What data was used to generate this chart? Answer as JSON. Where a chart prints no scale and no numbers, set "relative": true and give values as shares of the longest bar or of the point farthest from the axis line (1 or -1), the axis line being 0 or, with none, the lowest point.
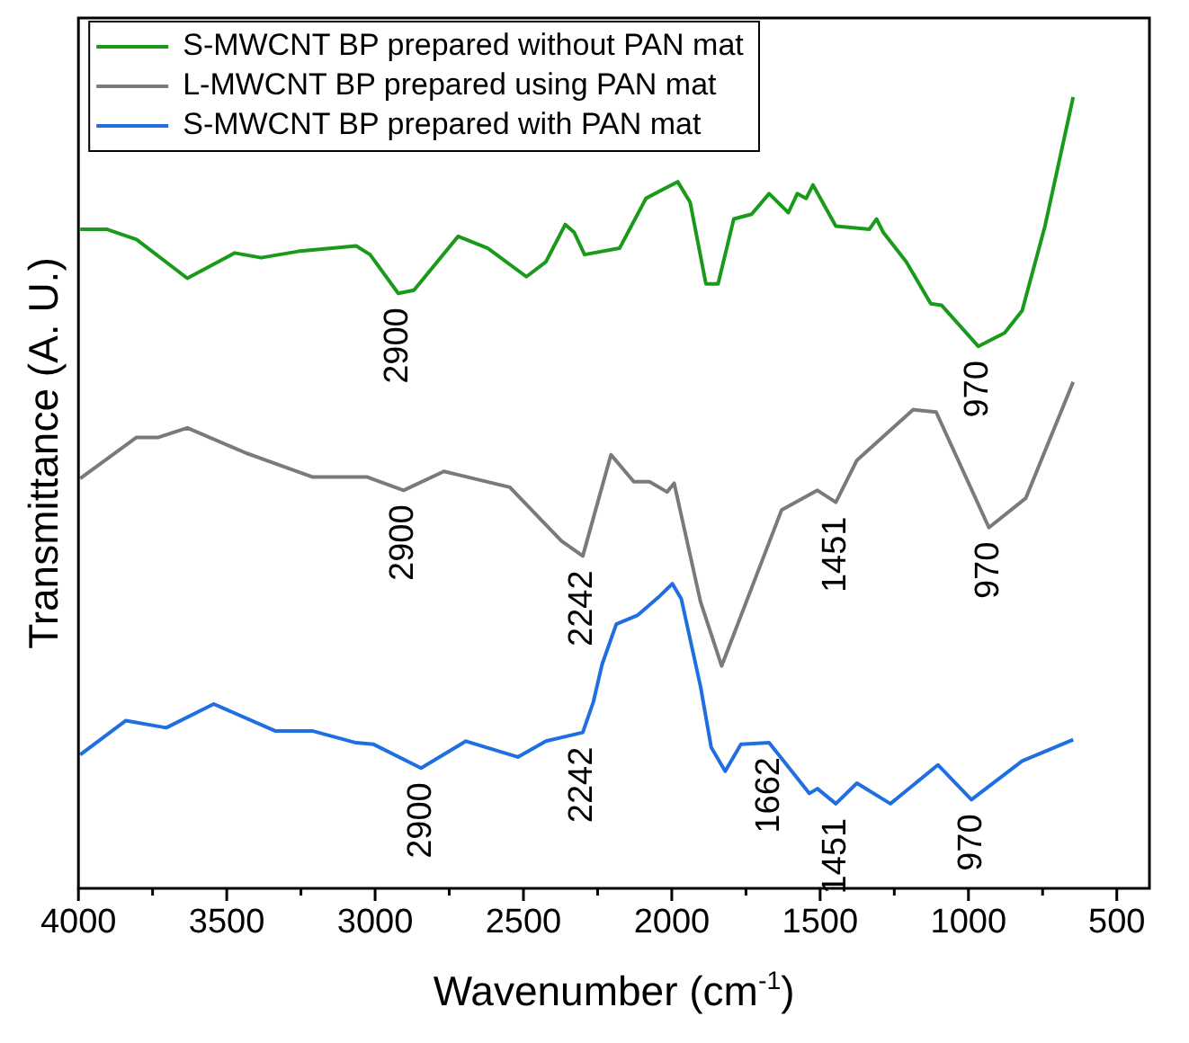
{
  "chart_data": {
    "type": "line",
    "relative": true,
    "xlabel": "Wavenumber (cm$^{-1}$)",
    "ylabel": "Transmittance (A. U.)",
    "xlim": [
      4000,
      390
    ],
    "xticks": [
      4000,
      {
        "value": 3750,
        "label": null
      },
      3500,
      {
        "value": 3250,
        "label": null
      },
      3000,
      {
        "value": 2750,
        "label": null
      },
      2500,
      {
        "value": 2250,
        "label": null
      },
      2000,
      {
        "value": 1750,
        "label": null
      },
      1500,
      {
        "value": 1250,
        "label": null
      },
      1000,
      {
        "value": 750,
        "label": null
      },
      500
    ],
    "legend": "top left",
    "line_style": "solid",
    "series": [
      {
        "name": "S-MWCNT BP prepared without PAN mat",
        "color": "#1a9a1a",
        "x": [
          3994,
          3905,
          3804,
          3633,
          3473,
          3384,
          3260,
          3064,
          3017,
          2922,
          2869,
          2720,
          2620,
          2490,
          2424,
          2359,
          2329,
          2294,
          2176,
          2087,
          2016,
          1980,
          1938,
          1885,
          1844,
          1791,
          1731,
          1672,
          1607,
          1577,
          1547,
          1524,
          1447,
          1334,
          1310,
          1287,
          1210,
          1127,
          1091,
          967,
          878,
          819,
          742,
          647
        ],
        "values": [
          0.833,
          0.833,
          0.82,
          0.771,
          0.803,
          0.797,
          0.805,
          0.812,
          0.801,
          0.752,
          0.756,
          0.824,
          0.809,
          0.773,
          0.792,
          0.839,
          0.829,
          0.801,
          0.809,
          0.872,
          0.886,
          0.893,
          0.867,
          0.764,
          0.764,
          0.846,
          0.852,
          0.878,
          0.854,
          0.878,
          0.872,
          0.889,
          0.837,
          0.833,
          0.846,
          0.829,
          0.792,
          0.739,
          0.737,
          0.685,
          0.702,
          0.73,
          0.837,
          1.0
        ]
      },
      {
        "name": "L-MWCNT BP prepared using PAN mat",
        "color": "#7a7a7a",
        "x": [
          3994,
          3804,
          3730,
          3633,
          3434,
          3212,
          3028,
          2904,
          2768,
          2546,
          2372,
          2300,
          2205,
          2128,
          2075,
          2016,
          1992,
          1903,
          1832,
          1630,
          1509,
          1447,
          1376,
          1186,
          1109,
          931,
          807,
          647
        ],
        "values": [
          0.518,
          0.57,
          0.57,
          0.582,
          0.55,
          0.52,
          0.52,
          0.503,
          0.527,
          0.507,
          0.439,
          0.42,
          0.548,
          0.514,
          0.514,
          0.501,
          0.512,
          0.362,
          0.281,
          0.478,
          0.503,
          0.488,
          0.541,
          0.605,
          0.602,
          0.456,
          0.493,
          0.64
        ]
      },
      {
        "name": "S-MWCNT BP prepared with PAN mat",
        "color": "#1f6fe0",
        "x": [
          3994,
          3840,
          3704,
          3544,
          3337,
          3212,
          3064,
          3005,
          2845,
          2694,
          2519,
          2424,
          2300,
          2264,
          2235,
          2187,
          2116,
          2039,
          1998,
          1968,
          1903,
          1867,
          1820,
          1767,
          1672,
          1536,
          1509,
          1447,
          1376,
          1263,
          1103,
          990,
          819,
          647
        ],
        "values": [
          0.169,
          0.212,
          0.203,
          0.233,
          0.199,
          0.199,
          0.184,
          0.182,
          0.152,
          0.186,
          0.166,
          0.186,
          0.197,
          0.236,
          0.283,
          0.334,
          0.345,
          0.37,
          0.385,
          0.366,
          0.255,
          0.178,
          0.148,
          0.182,
          0.184,
          0.12,
          0.126,
          0.107,
          0.133,
          0.107,
          0.156,
          0.112,
          0.161,
          0.188
        ]
      }
    ],
    "annotations": [
      {
        "text": "2900",
        "x": 2922,
        "y": 0.752
      },
      {
        "text": "970",
        "x": 967,
        "y": 0.685
      },
      {
        "text": "2900",
        "x": 2904,
        "y": 0.503
      },
      {
        "text": "2242",
        "x": 2300,
        "y": 0.42
      },
      {
        "text": "1451",
        "x": 1447,
        "y": 0.488
      },
      {
        "text": "970",
        "x": 931,
        "y": 0.456
      },
      {
        "text": "2900",
        "x": 2845,
        "y": 0.152
      },
      {
        "text": "2242",
        "x": 2300,
        "y": 0.197
      },
      {
        "text": "1662",
        "x": 1672,
        "y": 0.184
      },
      {
        "text": "1451",
        "x": 1447,
        "y": 0.107
      },
      {
        "text": "970",
        "x": 990,
        "y": 0.112
      }
    ]
  }
}
